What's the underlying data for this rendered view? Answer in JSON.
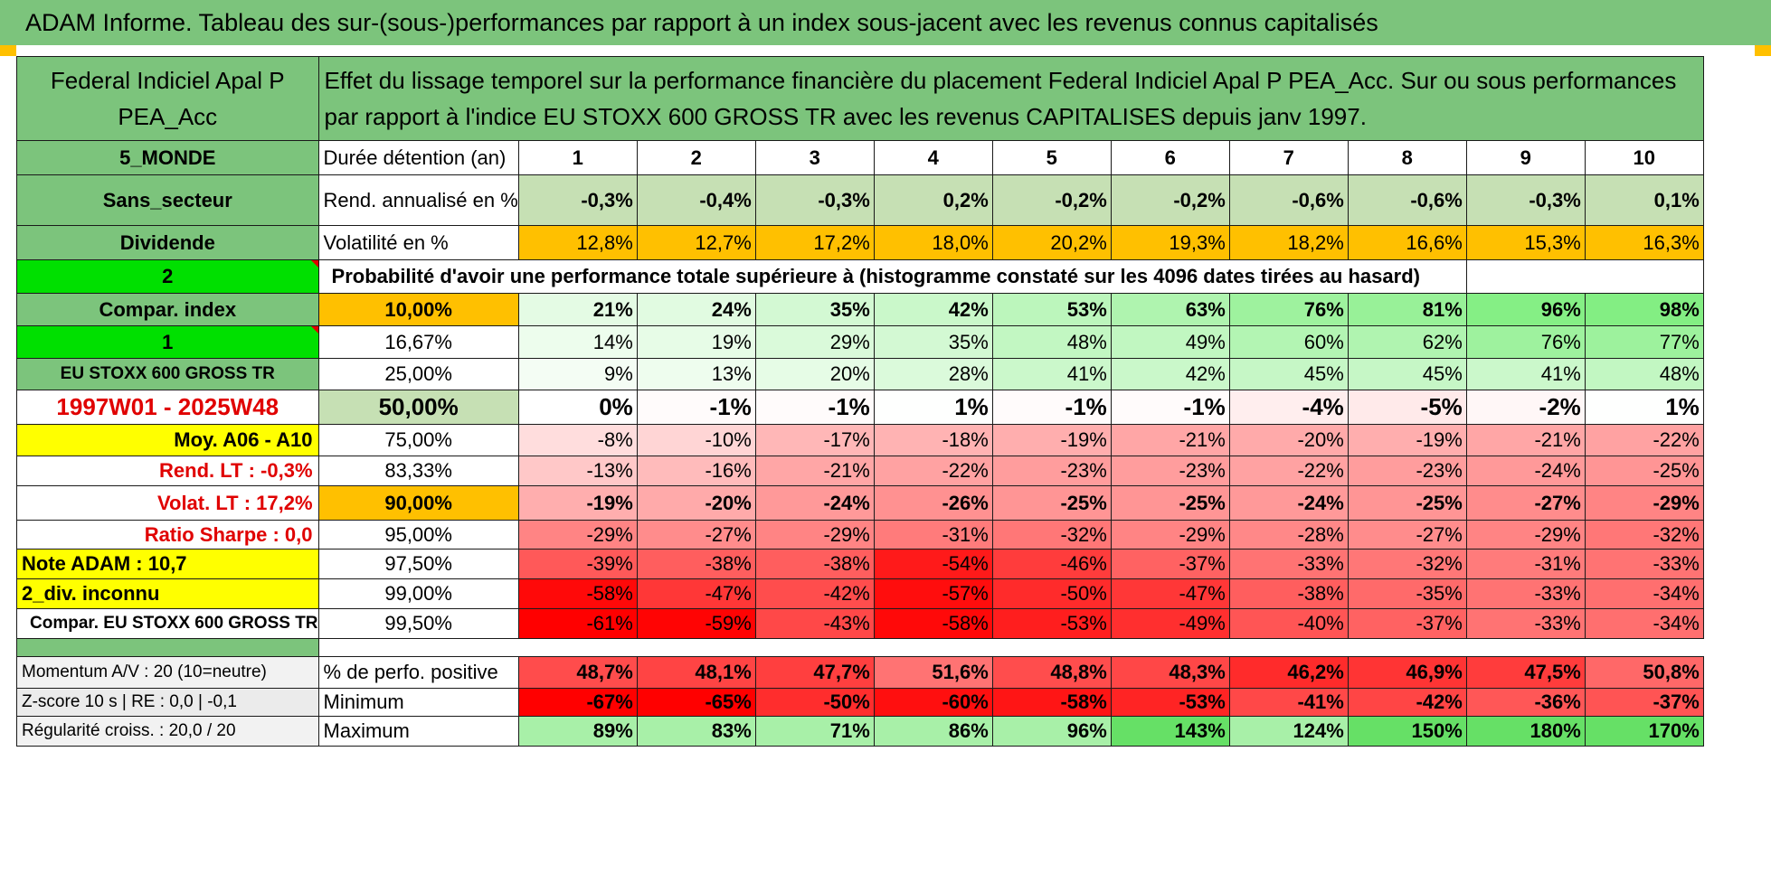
{
  "title": "ADAM Informe. Tableau des sur-(sous-)performances par rapport à un index sous-jacent avec les revenus connus capitalisés",
  "fund_header": "Federal Indiciel Apal P PEA_Acc",
  "description": "Effet du lissage temporel sur la performance financière du placement Federal Indiciel Apal P PEA_Acc. Sur ou sous performances par rapport à l'indice EU STOXX 600 GROSS TR avec les revenus CAPITALISES depuis janv 1997.",
  "durations": [
    "1",
    "2",
    "3",
    "4",
    "5",
    "6",
    "7",
    "8",
    "9",
    "10"
  ],
  "colors": {
    "header_green": "#7cc47c",
    "bright_green": "#00e000",
    "yellow": "#ffff00",
    "orange": "#ffc000",
    "red_text": "#e00000"
  },
  "stats": [
    {
      "left": "5_MONDE",
      "label": "Durée détention (an)",
      "values": [
        "1",
        "2",
        "3",
        "4",
        "5",
        "6",
        "7",
        "8",
        "9",
        "10"
      ],
      "style": "header"
    },
    {
      "left": "Sans_secteur",
      "label": "Rend. annualisé en %",
      "values": [
        "-0,3%",
        "-0,4%",
        "-0,3%",
        "0,2%",
        "-0,2%",
        "-0,2%",
        "-0,6%",
        "-0,6%",
        "-0,3%",
        "0,1%"
      ],
      "style": "rend"
    },
    {
      "left": "Dividende",
      "label": "Volatilité en %",
      "values": [
        "12,8%",
        "12,7%",
        "17,2%",
        "18,0%",
        "20,2%",
        "19,3%",
        "18,2%",
        "16,6%",
        "15,3%",
        "16,3%"
      ],
      "style": "vol"
    }
  ],
  "proba": {
    "left": "2",
    "text": "Probabilité d'avoir une performance totale supérieure à (histogramme constaté sur les 4096 dates tirées au hasard)"
  },
  "perf_rows": [
    {
      "left": "Compar. index",
      "pct": "10,00%",
      "values": [
        "21%",
        "24%",
        "35%",
        "42%",
        "53%",
        "63%",
        "76%",
        "81%",
        "96%",
        "98%"
      ]
    },
    {
      "left": "1",
      "pct": "16,67%",
      "values": [
        "14%",
        "19%",
        "29%",
        "35%",
        "48%",
        "49%",
        "60%",
        "62%",
        "76%",
        "77%"
      ]
    },
    {
      "left": "EU STOXX 600 GROSS TR",
      "pct": "25,00%",
      "values": [
        "9%",
        "13%",
        "20%",
        "28%",
        "41%",
        "42%",
        "45%",
        "45%",
        "41%",
        "48%"
      ]
    },
    {
      "left": "1997W01 - 2025W48",
      "pct": "50,00%",
      "values": [
        "0%",
        "-1%",
        "-1%",
        "1%",
        "-1%",
        "-1%",
        "-4%",
        "-5%",
        "-2%",
        "1%"
      ]
    },
    {
      "left": "Moy. A06 - A10",
      "pct": "75,00%",
      "values": [
        "-8%",
        "-10%",
        "-17%",
        "-18%",
        "-19%",
        "-21%",
        "-20%",
        "-19%",
        "-21%",
        "-22%"
      ]
    },
    {
      "left": "Rend. LT :   -0,3%",
      "pct": "83,33%",
      "values": [
        "-13%",
        "-16%",
        "-21%",
        "-22%",
        "-23%",
        "-23%",
        "-22%",
        "-23%",
        "-24%",
        "-25%"
      ]
    },
    {
      "left": "Volat. LT :   17,2%",
      "pct": "90,00%",
      "values": [
        "-19%",
        "-20%",
        "-24%",
        "-26%",
        "-25%",
        "-25%",
        "-24%",
        "-25%",
        "-27%",
        "-29%"
      ]
    },
    {
      "left": "Ratio Sharpe :    0,0",
      "pct": "95,00%",
      "values": [
        "-29%",
        "-27%",
        "-29%",
        "-31%",
        "-32%",
        "-29%",
        "-28%",
        "-27%",
        "-29%",
        "-32%"
      ]
    },
    {
      "left": "Note ADAM : 10,7",
      "pct": "97,50%",
      "values": [
        "-39%",
        "-38%",
        "-38%",
        "-54%",
        "-46%",
        "-37%",
        "-33%",
        "-32%",
        "-31%",
        "-33%"
      ]
    },
    {
      "left": "2_div. inconnu",
      "pct": "99,00%",
      "values": [
        "-58%",
        "-47%",
        "-42%",
        "-57%",
        "-50%",
        "-47%",
        "-38%",
        "-35%",
        "-33%",
        "-34%"
      ]
    },
    {
      "left": "Compar. EU STOXX 600 GROSS TR",
      "pct": "99,50%",
      "values": [
        "-61%",
        "-59%",
        "-43%",
        "-58%",
        "-53%",
        "-49%",
        "-40%",
        "-37%",
        "-33%",
        "-34%"
      ]
    }
  ],
  "bottom_rows": [
    {
      "left": "Momentum A/V : 20 (10=neutre)",
      "label": "% de perfo. positive",
      "values": [
        "48,7%",
        "48,1%",
        "47,7%",
        "51,6%",
        "48,8%",
        "48,3%",
        "46,2%",
        "46,9%",
        "47,5%",
        "50,8%"
      ]
    },
    {
      "left": "Z-score 10 s | RE : 0,0 | -0,1",
      "label": "Minimum",
      "values": [
        "-67%",
        "-65%",
        "-50%",
        "-60%",
        "-58%",
        "-53%",
        "-41%",
        "-42%",
        "-36%",
        "-37%"
      ]
    },
    {
      "left": "Régularité croiss. : 20,0 / 20",
      "label": "Maximum",
      "values": [
        "89%",
        "83%",
        "71%",
        "86%",
        "96%",
        "143%",
        "124%",
        "150%",
        "180%",
        "170%"
      ]
    }
  ]
}
